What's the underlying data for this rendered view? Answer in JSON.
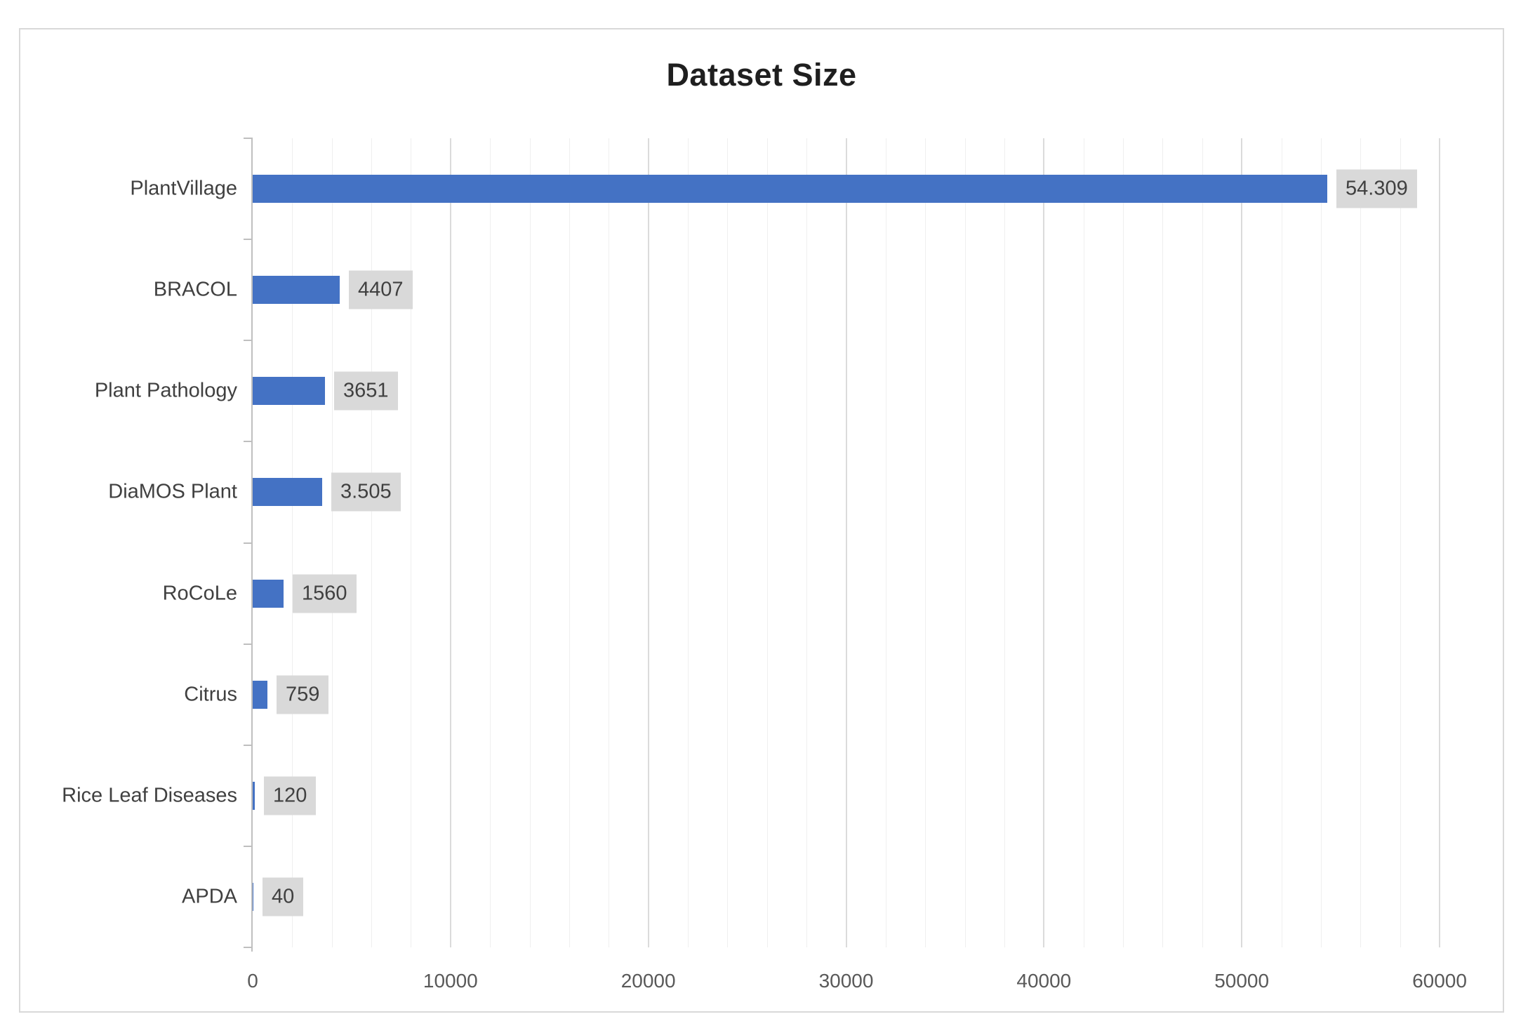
{
  "chart_data": {
    "type": "bar",
    "orientation": "horizontal",
    "title": "Dataset Size",
    "categories": [
      "PlantVillage",
      "BRACOL",
      "Plant Pathology",
      "DiaMOS Plant",
      "RoCoLe",
      "Citrus",
      "Rice Leaf Diseases",
      "APDA"
    ],
    "values": [
      54309,
      4407,
      3651,
      3505,
      1560,
      759,
      120,
      40
    ],
    "value_labels": [
      "54.309",
      "4407",
      "3651",
      "3.505",
      "1560",
      "759",
      "120",
      "40"
    ],
    "xlim": [
      0,
      60000
    ],
    "x_tick_interval": 10000,
    "x_minor_grid_interval": 2000,
    "x_tick_labels": [
      "0",
      "10000",
      "20000",
      "30000",
      "40000",
      "50000",
      "60000"
    ],
    "grid": true,
    "legend": false,
    "bar_color": "#4472C4",
    "value_label_bg": "#D9D9D9",
    "frame_border_color": "#D9D9D9"
  }
}
